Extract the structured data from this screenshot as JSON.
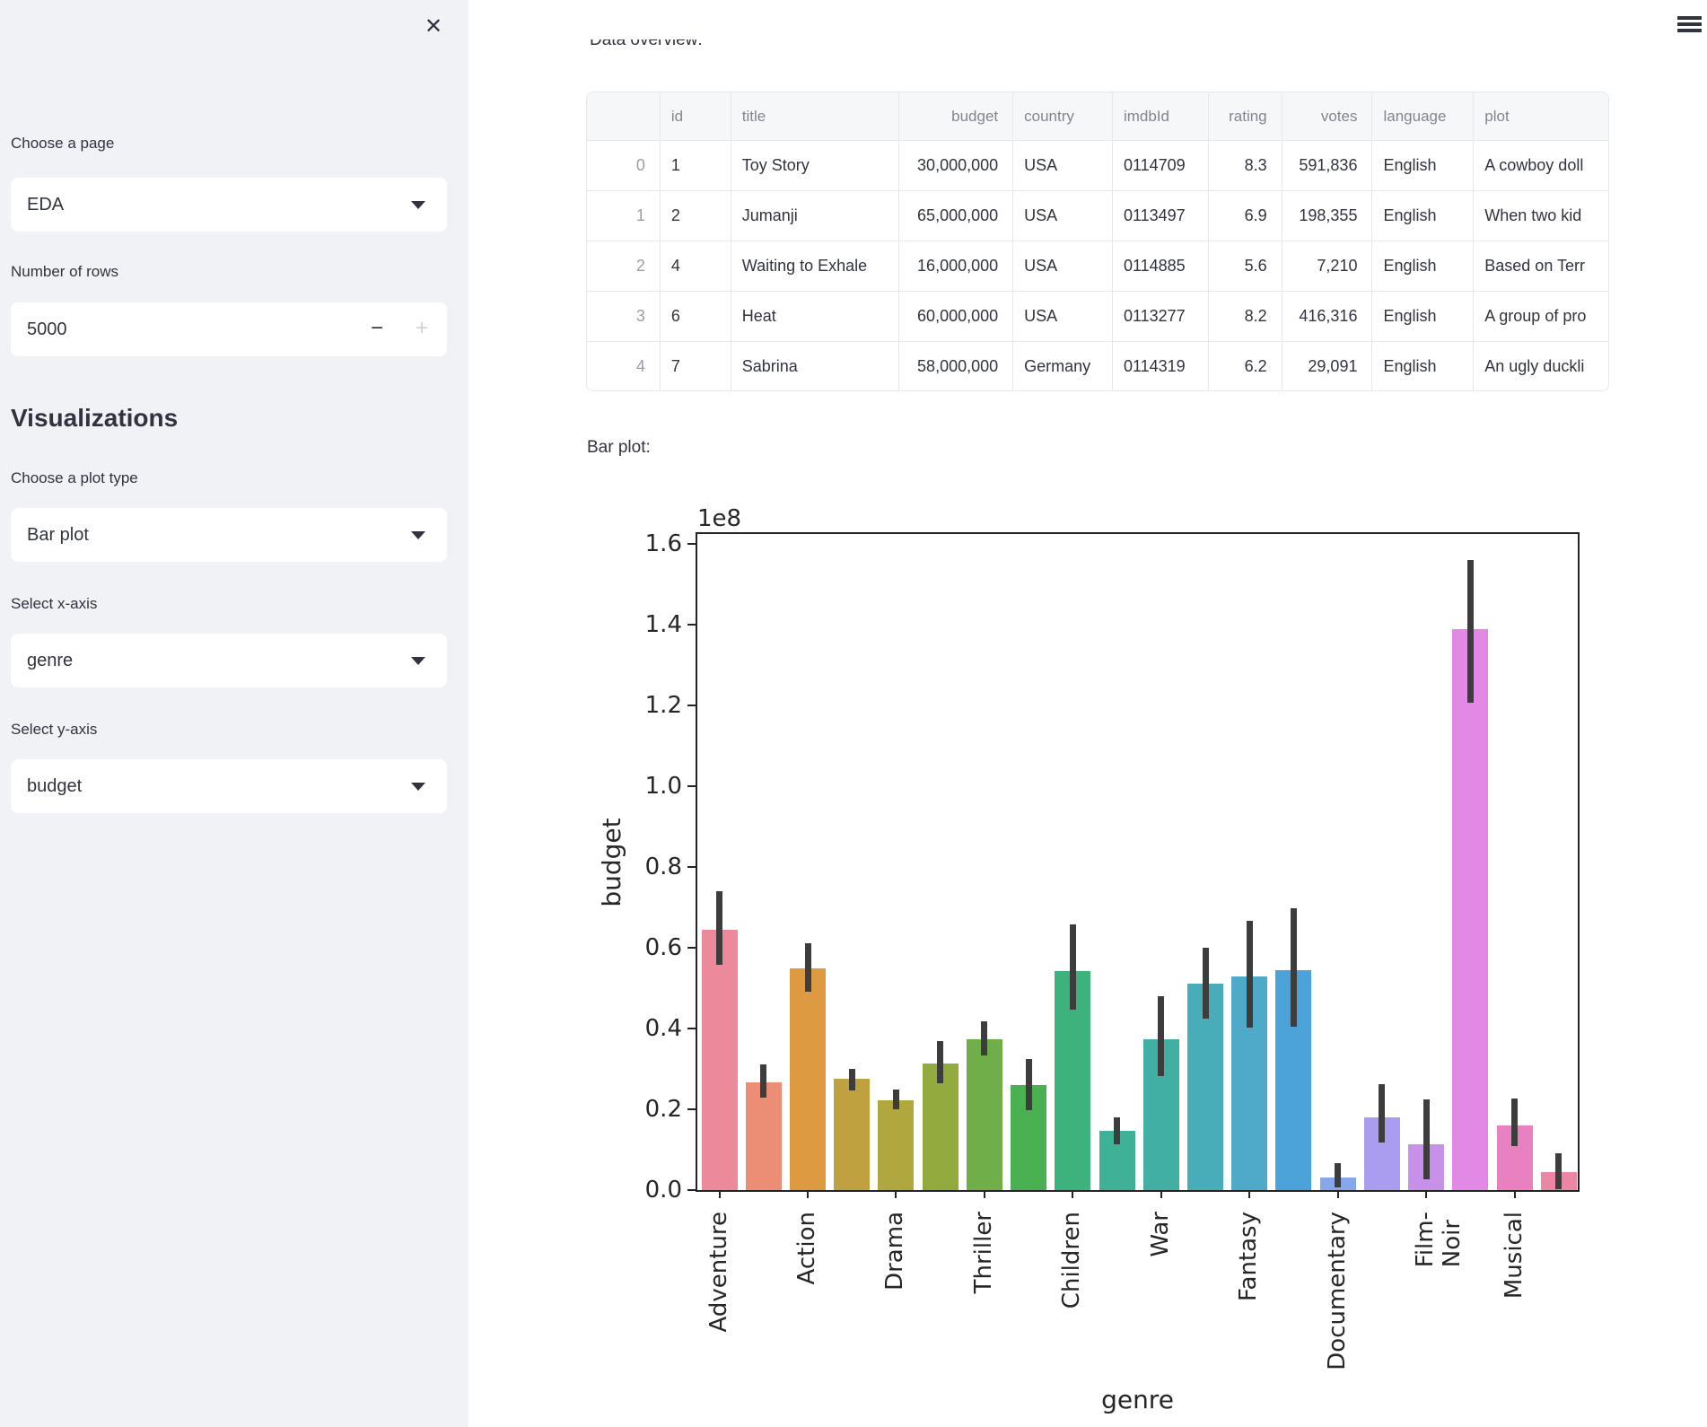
{
  "sidebar": {
    "close_glyph": "✕",
    "page_label": "Choose a page",
    "page_value": "EDA",
    "rows_label": "Number of rows",
    "rows_value": "5000",
    "minus_glyph": "−",
    "plus_glyph": "+",
    "section_title": "Visualizations",
    "plot_type_label": "Choose a plot type",
    "plot_type_value": "Bar plot",
    "xaxis_label": "Select x-axis",
    "xaxis_value": "genre",
    "yaxis_label": "Select y-axis",
    "yaxis_value": "budget"
  },
  "main": {
    "overview_label": "Data overview:",
    "barplot_label": "Bar plot:"
  },
  "table": {
    "columns": [
      "",
      "id",
      "title",
      "budget",
      "country",
      "imdbId",
      "rating",
      "votes",
      "language",
      "plot"
    ],
    "rows": [
      [
        "0",
        "1",
        "Toy Story",
        "30,000,000",
        "USA",
        "0114709",
        "8.3",
        "591,836",
        "English",
        "A cowboy doll"
      ],
      [
        "1",
        "2",
        "Jumanji",
        "65,000,000",
        "USA",
        "0113497",
        "6.9",
        "198,355",
        "English",
        "When two kid"
      ],
      [
        "2",
        "4",
        "Waiting to Exhale",
        "16,000,000",
        "USA",
        "0114885",
        "5.6",
        "7,210",
        "English",
        "Based on Terr"
      ],
      [
        "3",
        "6",
        "Heat",
        "60,000,000",
        "USA",
        "0113277",
        "8.2",
        "416,316",
        "English",
        "A group of pro"
      ],
      [
        "4",
        "7",
        "Sabrina",
        "58,000,000",
        "Germany",
        "0114319",
        "6.2",
        "29,091",
        "English",
        "An ugly duckli"
      ]
    ]
  },
  "chart_data": {
    "type": "bar",
    "title": "",
    "xlabel": "genre",
    "ylabel": "budget",
    "offset_text": "1e8",
    "ylim_1e8": [
      0.0,
      1.635
    ],
    "grid": false,
    "legend": false,
    "ytick_labels": [
      "0.0",
      "0.2",
      "0.4",
      "0.6",
      "0.8",
      "1.0",
      "1.2",
      "1.4",
      "1.6"
    ],
    "xtick_labels": [
      "Adventure",
      "Action",
      "Drama",
      "Thriller",
      "Children",
      "War",
      "Fantasy",
      "Documentary",
      "Film-Noir",
      "Musical"
    ],
    "errorbar_color": "#3d3d3d",
    "bars": [
      {
        "label": "Adventure",
        "value_1e8": 0.645,
        "err_low_1e8": 0.558,
        "err_high_1e8": 0.74,
        "color": "#ec8a9c"
      },
      {
        "label": "",
        "value_1e8": 0.267,
        "err_low_1e8": 0.229,
        "err_high_1e8": 0.311,
        "color": "#ec8d75"
      },
      {
        "label": "Action",
        "value_1e8": 0.549,
        "err_low_1e8": 0.49,
        "err_high_1e8": 0.611,
        "color": "#dd9a40"
      },
      {
        "label": "",
        "value_1e8": 0.276,
        "err_low_1e8": 0.247,
        "err_high_1e8": 0.3,
        "color": "#c0a13f"
      },
      {
        "label": "Drama",
        "value_1e8": 0.222,
        "err_low_1e8": 0.2,
        "err_high_1e8": 0.249,
        "color": "#b0a73f"
      },
      {
        "label": "",
        "value_1e8": 0.313,
        "err_low_1e8": 0.264,
        "err_high_1e8": 0.369,
        "color": "#93aa3e"
      },
      {
        "label": "Thriller",
        "value_1e8": 0.373,
        "err_low_1e8": 0.333,
        "err_high_1e8": 0.418,
        "color": "#6fae48"
      },
      {
        "label": "",
        "value_1e8": 0.26,
        "err_low_1e8": 0.198,
        "err_high_1e8": 0.325,
        "color": "#4bb052"
      },
      {
        "label": "Children",
        "value_1e8": 0.542,
        "err_low_1e8": 0.446,
        "err_high_1e8": 0.658,
        "color": "#3db27c"
      },
      {
        "label": "",
        "value_1e8": 0.147,
        "err_low_1e8": 0.114,
        "err_high_1e8": 0.181,
        "color": "#3fb196"
      },
      {
        "label": "War",
        "value_1e8": 0.373,
        "err_low_1e8": 0.283,
        "err_high_1e8": 0.481,
        "color": "#42afa5"
      },
      {
        "label": "",
        "value_1e8": 0.511,
        "err_low_1e8": 0.425,
        "err_high_1e8": 0.6,
        "color": "#48adb8"
      },
      {
        "label": "Fantasy",
        "value_1e8": 0.53,
        "err_low_1e8": 0.403,
        "err_high_1e8": 0.667,
        "color": "#4eaac8"
      },
      {
        "label": "",
        "value_1e8": 0.545,
        "err_low_1e8": 0.404,
        "err_high_1e8": 0.698,
        "color": "#4ba3d9"
      },
      {
        "label": "Documentary",
        "value_1e8": 0.031,
        "err_low_1e8": 0.007,
        "err_high_1e8": 0.066,
        "color": "#86a8ea"
      },
      {
        "label": "",
        "value_1e8": 0.181,
        "err_low_1e8": 0.118,
        "err_high_1e8": 0.263,
        "color": "#aa9cee"
      },
      {
        "label": "Film-Noir",
        "value_1e8": 0.113,
        "err_low_1e8": 0.026,
        "err_high_1e8": 0.225,
        "color": "#c791ea"
      },
      {
        "label": "",
        "value_1e8": 1.39,
        "err_low_1e8": 1.207,
        "err_high_1e8": 1.56,
        "color": "#e289e6"
      },
      {
        "label": "Musical",
        "value_1e8": 0.16,
        "err_low_1e8": 0.108,
        "err_high_1e8": 0.227,
        "color": "#e981c1"
      },
      {
        "label": "",
        "value_1e8": 0.044,
        "err_low_1e8": 0.002,
        "err_high_1e8": 0.091,
        "color": "#ec86a5"
      }
    ]
  }
}
